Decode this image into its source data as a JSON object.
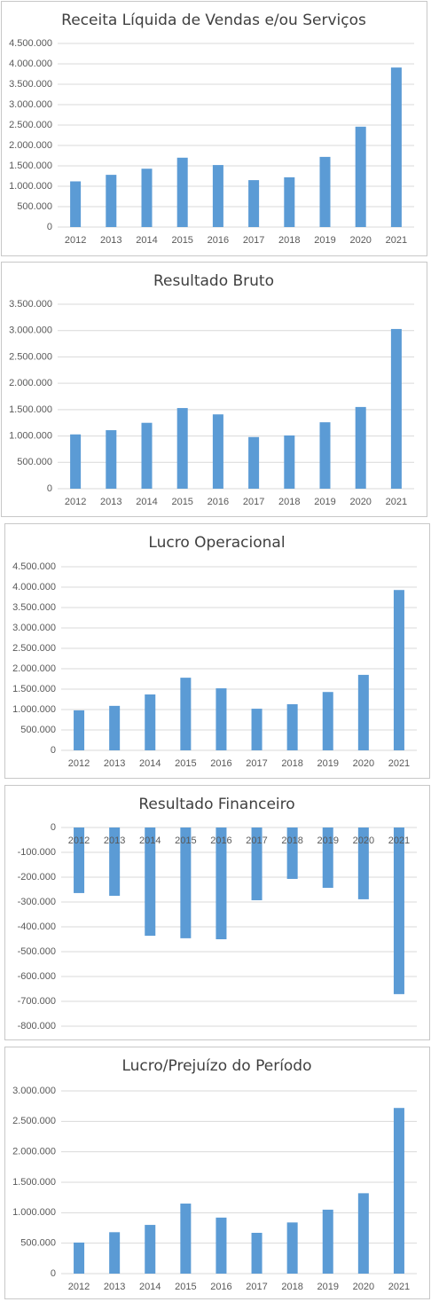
{
  "chart_data": [
    {
      "type": "bar",
      "title": "Receita Líquida de Vendas e/ou Serviços",
      "color": "#5b9bd5",
      "grid": true,
      "categories": [
        "2012",
        "2013",
        "2014",
        "2015",
        "2016",
        "2017",
        "2018",
        "2019",
        "2020",
        "2021"
      ],
      "values": [
        1120000,
        1280000,
        1430000,
        1700000,
        1520000,
        1150000,
        1220000,
        1720000,
        2460000,
        3910000
      ],
      "ylim": [
        0,
        4500000
      ],
      "yticks": [
        0,
        {
          "value": 500000,
          "label": "500.000"
        },
        {
          "value": 1000000,
          "label": "1.000.000"
        },
        {
          "value": 1500000,
          "label": "1.500.000"
        },
        {
          "value": 2000000,
          "label": "2.000.000"
        },
        {
          "value": 2500000,
          "label": "2.500.000"
        },
        {
          "value": 3000000,
          "label": "3.000.000"
        },
        {
          "value": 3500000,
          "label": "3.500.000"
        },
        {
          "value": 4000000,
          "label": "4.000.000"
        },
        {
          "value": 4500000,
          "label": "4.500.000"
        }
      ]
    },
    {
      "type": "bar",
      "title": "Resultado Bruto",
      "color": "#5b9bd5",
      "grid": true,
      "categories": [
        "2012",
        "2013",
        "2014",
        "2015",
        "2016",
        "2017",
        "2018",
        "2019",
        "2020",
        "2021"
      ],
      "values": [
        1030000,
        1110000,
        1250000,
        1530000,
        1410000,
        980000,
        1010000,
        1260000,
        1550000,
        3030000
      ],
      "ylim": [
        0,
        3500000
      ],
      "yticks": [
        0,
        {
          "value": 500000,
          "label": "500.000"
        },
        {
          "value": 1000000,
          "label": "1.000.000"
        },
        {
          "value": 1500000,
          "label": "1.500.000"
        },
        {
          "value": 2000000,
          "label": "2.000.000"
        },
        {
          "value": 2500000,
          "label": "2.500.000"
        },
        {
          "value": 3000000,
          "label": "3.000.000"
        },
        {
          "value": 3500000,
          "label": "3.500.000"
        }
      ]
    },
    {
      "type": "bar",
      "title": "Lucro Operacional",
      "color": "#5b9bd5",
      "grid": true,
      "categories": [
        "2012",
        "2013",
        "2014",
        "2015",
        "2016",
        "2017",
        "2018",
        "2019",
        "2020",
        "2021"
      ],
      "values": [
        980000,
        1090000,
        1370000,
        1780000,
        1520000,
        1020000,
        1130000,
        1430000,
        1850000,
        3930000
      ],
      "ylim": [
        0,
        4500000
      ],
      "yticks": [
        0,
        {
          "value": 500000,
          "label": "500.000"
        },
        {
          "value": 1000000,
          "label": "1.000.000"
        },
        {
          "value": 1500000,
          "label": "1.500.000"
        },
        {
          "value": 2000000,
          "label": "2.000.000"
        },
        {
          "value": 2500000,
          "label": "2.500.000"
        },
        {
          "value": 3000000,
          "label": "3.000.000"
        },
        {
          "value": 3500000,
          "label": "3.500.000"
        },
        {
          "value": 4000000,
          "label": "4.000.000"
        },
        {
          "value": 4500000,
          "label": "4.500.000"
        }
      ]
    },
    {
      "type": "bar",
      "title": "Resultado Financeiro",
      "color": "#5b9bd5",
      "grid": true,
      "categories": [
        "2012",
        "2013",
        "2014",
        "2015",
        "2016",
        "2017",
        "2018",
        "2019",
        "2020",
        "2021"
      ],
      "values": [
        -264000,
        -275000,
        -436000,
        -446000,
        -450000,
        -293000,
        -207000,
        -243000,
        -289000,
        -671000
      ],
      "ylim": [
        -800000,
        0
      ],
      "yticks": [
        0,
        {
          "value": -100000,
          "label": "-100.000"
        },
        {
          "value": -200000,
          "label": "-200.000"
        },
        {
          "value": -300000,
          "label": "-300.000"
        },
        {
          "value": -400000,
          "label": "-400.000"
        },
        {
          "value": -500000,
          "label": "-500.000"
        },
        {
          "value": -600000,
          "label": "-600.000"
        },
        {
          "value": -700000,
          "label": "-700.000"
        },
        {
          "value": -800000,
          "label": "-800.000"
        }
      ]
    },
    {
      "type": "bar",
      "title": "Lucro/Prejuízo do Período",
      "color": "#5b9bd5",
      "grid": true,
      "categories": [
        "2012",
        "2013",
        "2014",
        "2015",
        "2016",
        "2017",
        "2018",
        "2019",
        "2020",
        "2021"
      ],
      "values": [
        510000,
        680000,
        800000,
        1150000,
        920000,
        670000,
        840000,
        1050000,
        1320000,
        2720000
      ],
      "ylim": [
        0,
        3000000
      ],
      "yticks": [
        0,
        {
          "value": 500000,
          "label": "500.000"
        },
        {
          "value": 1000000,
          "label": "1.000.000"
        },
        {
          "value": 1500000,
          "label": "1.500.000"
        },
        {
          "value": 2000000,
          "label": "2.000.000"
        },
        {
          "value": 2500000,
          "label": "2.500.000"
        },
        {
          "value": 3000000,
          "label": "3.000.000"
        }
      ]
    }
  ]
}
